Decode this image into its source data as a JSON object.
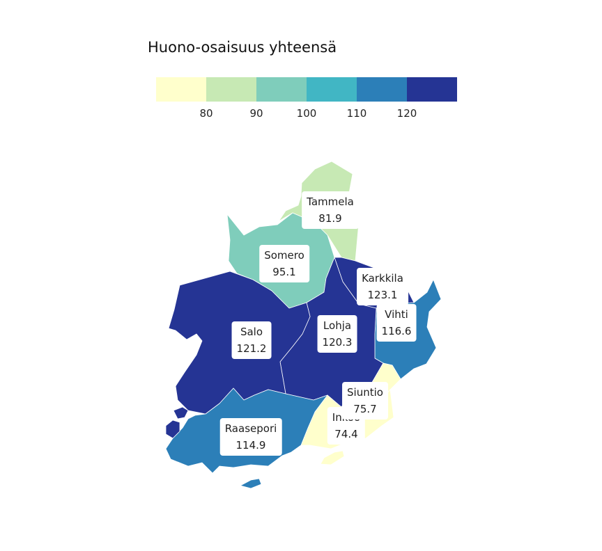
{
  "legend": {
    "title": "Huono-osaisuus yhteensä",
    "colors": [
      "#ffffcc",
      "#c7e9b4",
      "#7fcdbb",
      "#41b6c4",
      "#2c7fb8",
      "#253494"
    ],
    "ticks": [
      "80",
      "90",
      "100",
      "110",
      "120"
    ]
  },
  "regions": [
    {
      "name": "Tammela",
      "value": "81.9",
      "color": "#c7e9b4"
    },
    {
      "name": "Somero",
      "value": "95.1",
      "color": "#7fcdbb"
    },
    {
      "name": "Karkkila",
      "value": "123.1",
      "color": "#253494"
    },
    {
      "name": "Vihti",
      "value": "116.6",
      "color": "#2c7fb8"
    },
    {
      "name": "Salo",
      "value": "121.2",
      "color": "#253494"
    },
    {
      "name": "Lohja",
      "value": "120.3",
      "color": "#253494"
    },
    {
      "name": "Siuntio",
      "value": "75.7",
      "color": "#ffffcc"
    },
    {
      "name": "Inkoo",
      "value": "74.4",
      "color": "#ffffcc"
    },
    {
      "name": "Raasepori",
      "value": "114.9",
      "color": "#2c7fb8"
    }
  ]
}
